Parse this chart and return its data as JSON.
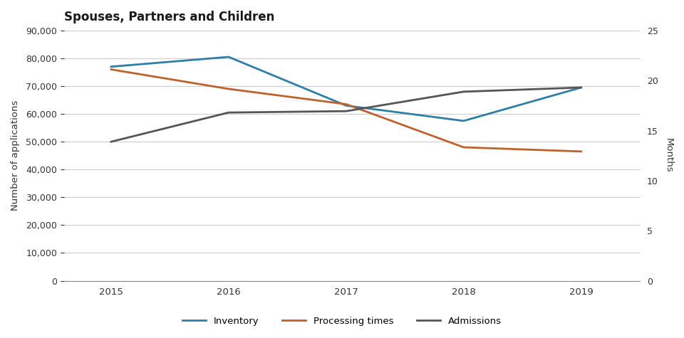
{
  "title": "Spouses, Partners and Children",
  "years": [
    2015,
    2016,
    2017,
    2018,
    2019
  ],
  "inventory": [
    77000,
    80500,
    63000,
    57500,
    69500
  ],
  "processing_times": [
    76000,
    69000,
    63500,
    48000,
    46500
  ],
  "admissions": [
    50000,
    60500,
    61000,
    68000,
    69500
  ],
  "ylabel_left": "Number of applications",
  "ylabel_right": "Months",
  "ylim_left": [
    0,
    90000
  ],
  "ylim_right": [
    0,
    25
  ],
  "yticks_left": [
    0,
    10000,
    20000,
    30000,
    40000,
    50000,
    60000,
    70000,
    80000,
    90000
  ],
  "yticks_right": [
    0,
    5,
    10,
    15,
    20,
    25
  ],
  "color_inventory": "#2e7fa8",
  "color_processing": "#c0622b",
  "color_admissions": "#555555",
  "legend_inventory": "Inventory",
  "legend_processing": "Processing times",
  "legend_admissions": "Admissions",
  "background_color": "#ffffff",
  "grid_color": "#cccccc",
  "text_color": "#333333"
}
